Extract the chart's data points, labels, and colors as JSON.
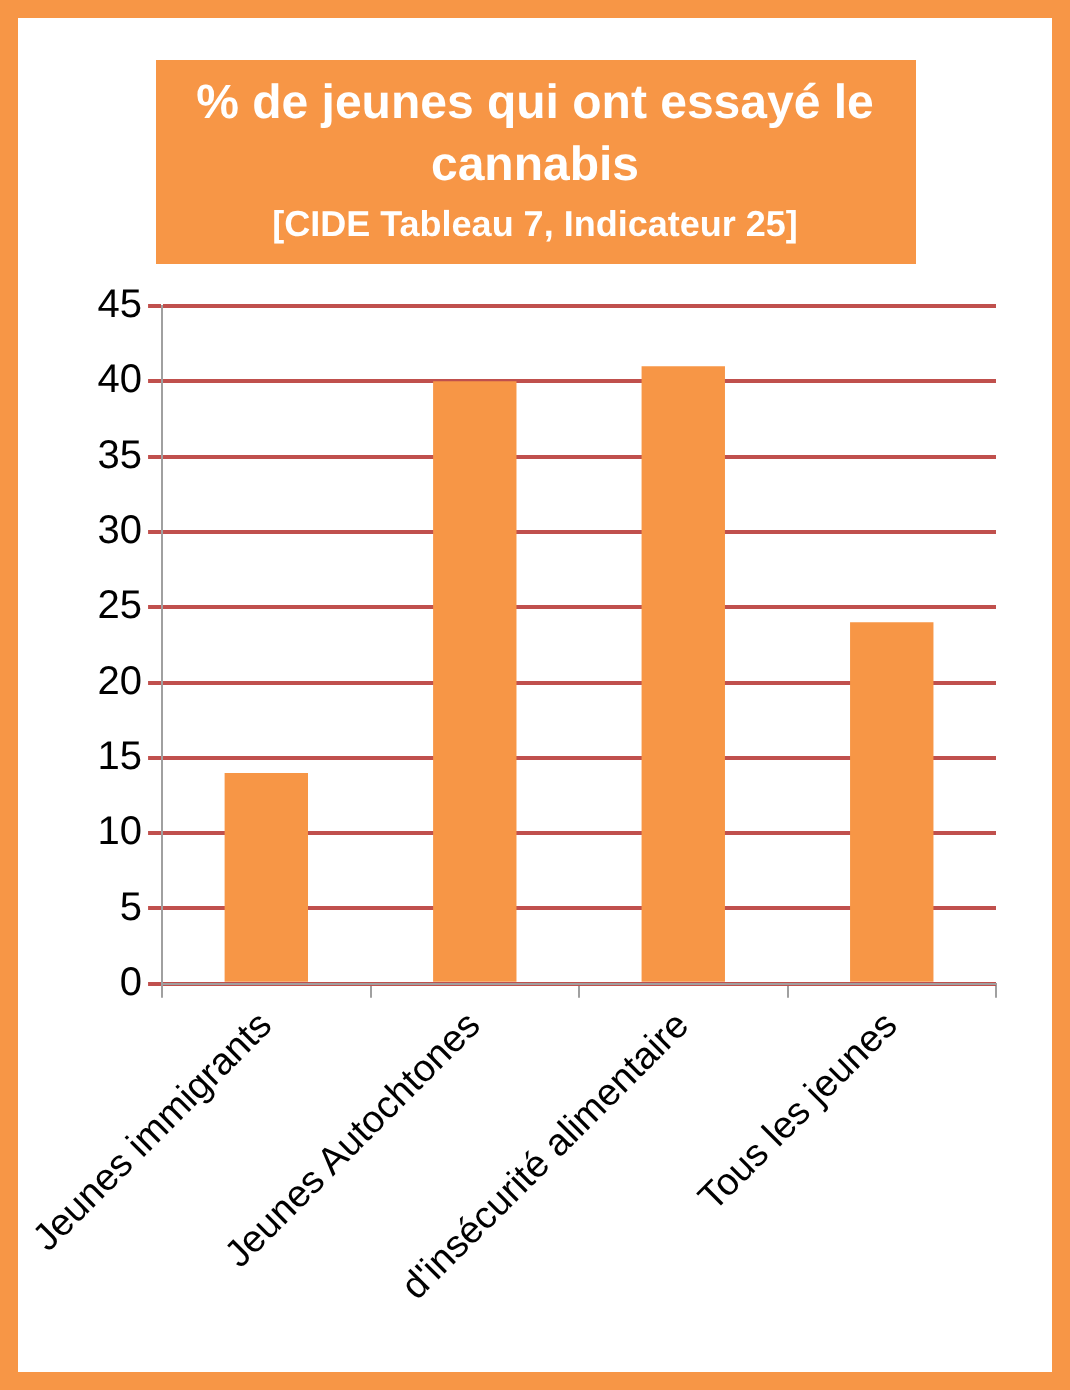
{
  "chart_data": {
    "type": "bar",
    "title": "% de jeunes qui ont essayé le cannabis",
    "subtitle": "[CIDE Tableau 7, Indicateur 25]",
    "categories": [
      "Jeunes immigrants",
      "Jeunes Autochtones",
      "d'insécurité alimentaire",
      "Tous les jeunes"
    ],
    "values": [
      14,
      40,
      41,
      24
    ],
    "color": "#f79646",
    "ylim": [
      0,
      45
    ],
    "yticks": [
      0,
      5,
      10,
      15,
      20,
      25,
      30,
      35,
      40,
      45
    ],
    "grid": "y",
    "legend": false
  }
}
